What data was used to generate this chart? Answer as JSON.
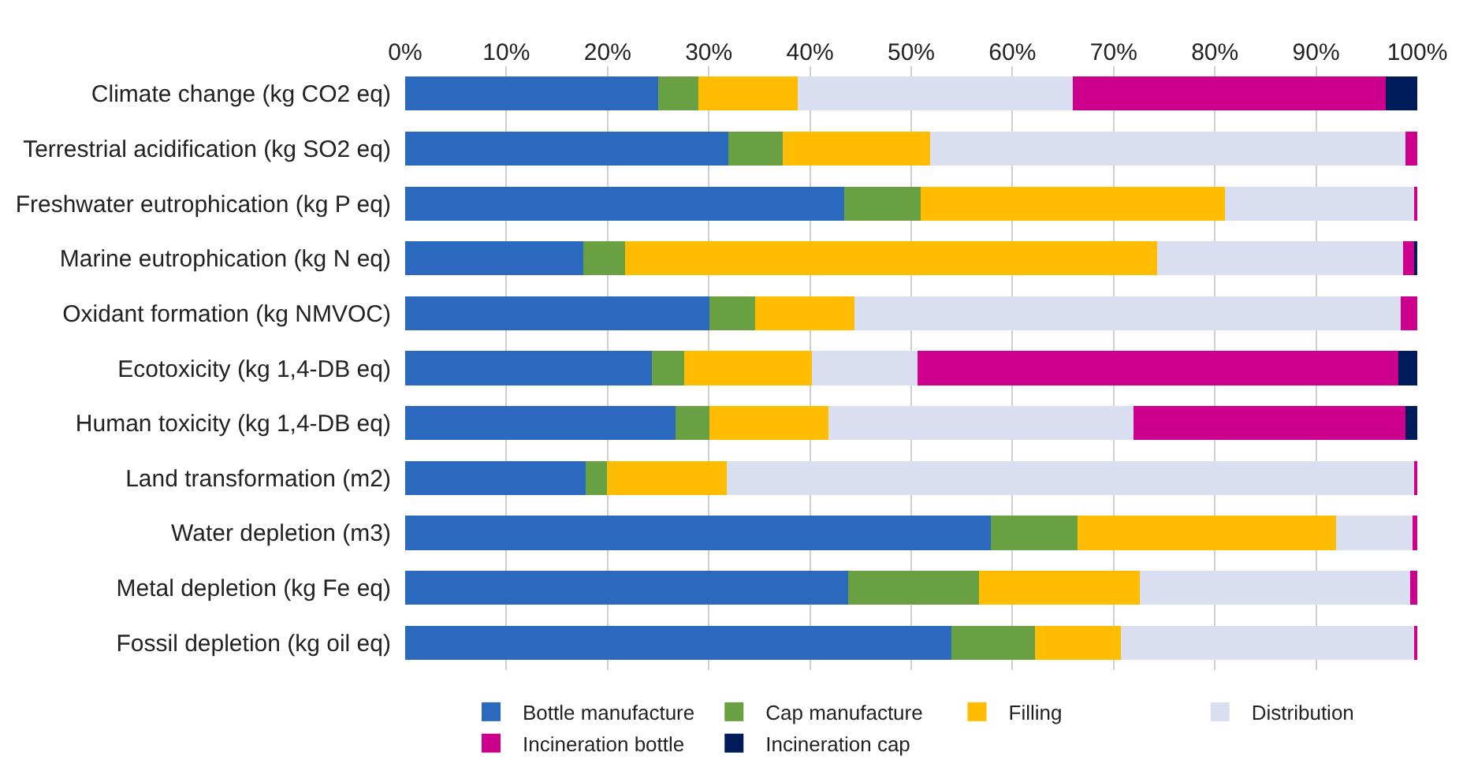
{
  "chart_data": {
    "type": "bar",
    "orientation": "horizontal",
    "stacked": true,
    "categories": [
      "Climate change (kg CO2 eq)",
      "Terrestrial acidification (kg SO2 eq)",
      "Freshwater eutrophication (kg P eq)",
      "Marine eutrophication (kg N eq)",
      "Oxidant formation (kg NMVOC)",
      "Ecotoxicity (kg 1,4-DB eq)",
      "Human toxicity (kg 1,4-DB eq)",
      "Land transformation (m2)",
      "Water depletion (m3)",
      "Metal depletion (kg Fe eq)",
      "Fossil depletion (kg oil eq)"
    ],
    "series": [
      {
        "name": "Bottle manufacture",
        "color": "#2a69be",
        "values": [
          25.0,
          31.9,
          43.4,
          17.6,
          30.1,
          24.4,
          26.7,
          17.8,
          57.9,
          43.8,
          54.0
        ]
      },
      {
        "name": "Cap manufacture",
        "color": "#69a042",
        "values": [
          4.0,
          5.4,
          7.5,
          4.1,
          4.5,
          3.2,
          3.4,
          2.1,
          8.5,
          12.9,
          8.2
        ]
      },
      {
        "name": "Filling",
        "color": "#ffbc00",
        "values": [
          9.8,
          14.6,
          30.1,
          52.6,
          9.8,
          12.6,
          11.7,
          11.9,
          25.6,
          15.9,
          8.5
        ]
      },
      {
        "name": "Distribution",
        "color": "#d9dff0",
        "values": [
          27.2,
          46.9,
          18.7,
          24.3,
          54.0,
          10.4,
          30.2,
          68.0,
          7.5,
          26.7,
          29.0
        ]
      },
      {
        "name": "Incineration bottle",
        "color": "#cc008c",
        "values": [
          30.9,
          1.2,
          0.3,
          1.2,
          1.6,
          47.5,
          26.8,
          0.2,
          0.5,
          0.7,
          0.3
        ]
      },
      {
        "name": "Incineration cap",
        "color": "#001b5a",
        "values": [
          3.1,
          0,
          0,
          0.2,
          0,
          1.9,
          1.2,
          0,
          0,
          0,
          0
        ]
      }
    ],
    "xlim": [
      0,
      100
    ],
    "xticks": [
      {
        "value": 0,
        "label": "0%"
      },
      {
        "value": 10,
        "label": "10%"
      },
      {
        "value": 20,
        "label": "20%"
      },
      {
        "value": 30,
        "label": "30%"
      },
      {
        "value": 40,
        "label": "40%"
      },
      {
        "value": 50,
        "label": "50%"
      },
      {
        "value": 60,
        "label": "60%"
      },
      {
        "value": 70,
        "label": "70%"
      },
      {
        "value": 80,
        "label": "80%"
      },
      {
        "value": 90,
        "label": "90%"
      },
      {
        "value": 100,
        "label": "100%"
      }
    ],
    "grid": "x",
    "legend": "bottom"
  }
}
